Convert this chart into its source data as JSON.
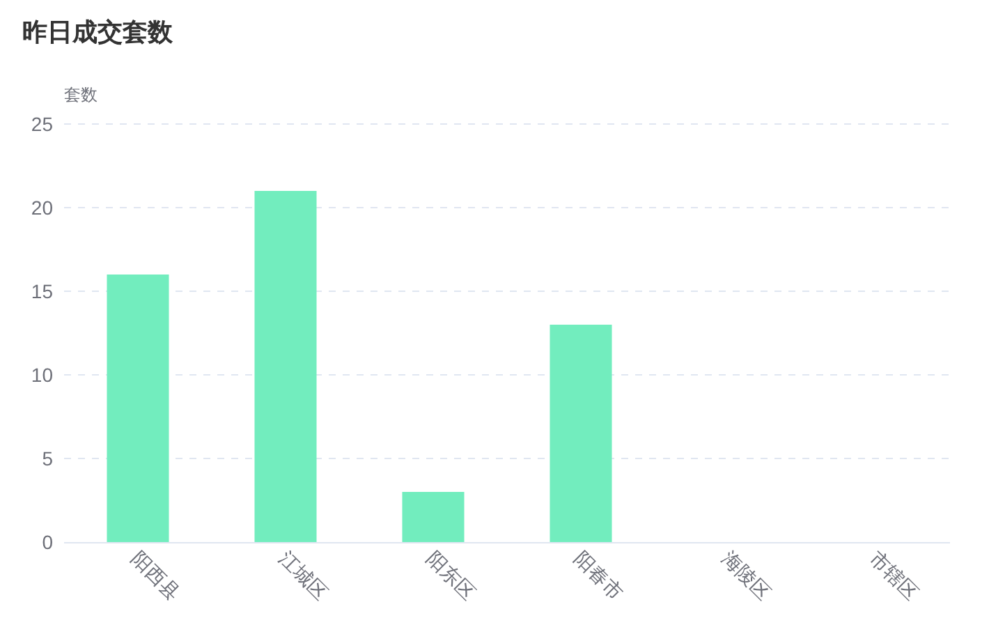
{
  "chart_data": {
    "type": "bar",
    "title": "昨日成交套数",
    "ylabel": "套数",
    "categories": [
      "阳西县",
      "江城区",
      "阳东区",
      "阳春市",
      "海陵区",
      "市辖区"
    ],
    "values": [
      16,
      21,
      3,
      13,
      0,
      0
    ],
    "color": "#72edbe",
    "ylim": [
      0,
      25
    ],
    "yticks": [
      0,
      5,
      10,
      15,
      20,
      25
    ],
    "grid": "y"
  }
}
